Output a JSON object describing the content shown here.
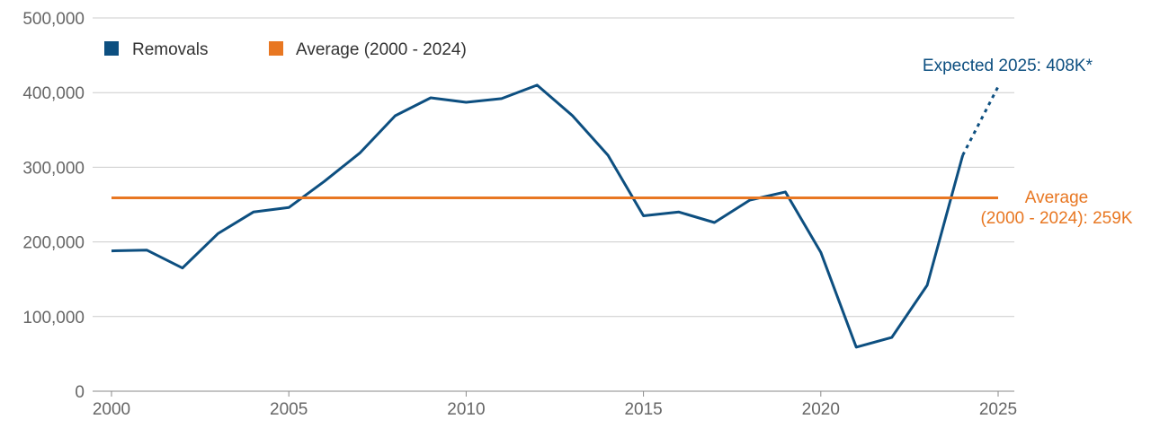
{
  "chart_data": {
    "type": "line",
    "title": "",
    "xlabel": "",
    "ylabel": "",
    "xlim": [
      2000,
      2025
    ],
    "ylim": [
      0,
      500000
    ],
    "x_ticks": [
      2000,
      2005,
      2010,
      2015,
      2020,
      2025
    ],
    "x_tick_labels": [
      "2000",
      "2005",
      "2010",
      "2015",
      "2020",
      "2025"
    ],
    "y_ticks": [
      0,
      100000,
      200000,
      300000,
      400000,
      500000
    ],
    "y_tick_labels": [
      "0",
      "100,000",
      "200,000",
      "300,000",
      "400,000",
      "500,000"
    ],
    "grid": "horizontal",
    "legend_position": "top-left",
    "series": [
      {
        "name": "Removals",
        "color": "#0d4f80",
        "style": "solid",
        "x": [
          2000,
          2001,
          2002,
          2003,
          2004,
          2005,
          2006,
          2007,
          2008,
          2009,
          2010,
          2011,
          2012,
          2013,
          2014,
          2015,
          2016,
          2017,
          2018,
          2019,
          2020,
          2021,
          2022,
          2023,
          2024
        ],
        "values": [
          188000,
          189000,
          165000,
          211000,
          240000,
          246000,
          281000,
          319000,
          369000,
          393000,
          387000,
          392000,
          410000,
          369000,
          316000,
          235000,
          240000,
          226000,
          256000,
          267000,
          186000,
          59000,
          72000,
          142000,
          316000
        ]
      },
      {
        "name": "Expected 2025",
        "color": "#0d4f80",
        "style": "dotted",
        "x": [
          2024,
          2025
        ],
        "values": [
          316000,
          408000
        ]
      },
      {
        "name": "Average (2000 - 2024)",
        "color": "#e87722",
        "style": "solid",
        "x": [
          2000,
          2025
        ],
        "values": [
          259000,
          259000
        ]
      }
    ],
    "legend": [
      {
        "label": "Removals",
        "color": "#0d4f80"
      },
      {
        "label": "Average (2000 - 2024)",
        "color": "#e87722"
      }
    ],
    "annotations": {
      "expected": {
        "text": "Expected 2025: 408K*",
        "color": "#0d4f80"
      },
      "average_line1": {
        "text": "Average",
        "color": "#e87722"
      },
      "average_line2": {
        "text": "(2000 - 2024): 259K",
        "color": "#e87722"
      }
    }
  }
}
